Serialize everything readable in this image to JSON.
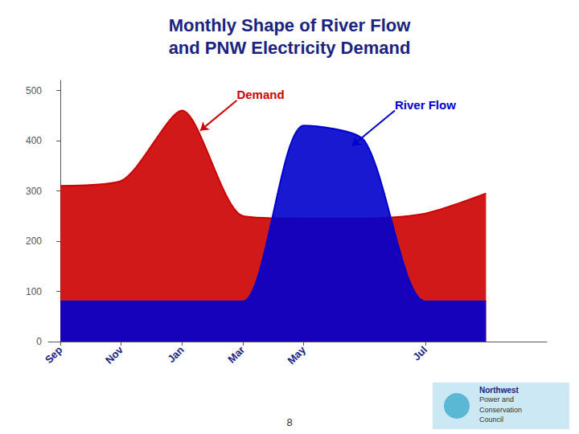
{
  "chart_data": {
    "type": "area",
    "title": "Monthly Shape of River Flow\nand PNW Electricity Demand",
    "title_color": "#1a237e",
    "x": [
      0,
      1,
      2,
      3,
      4,
      5,
      6,
      7
    ],
    "series": [
      {
        "name": "Demand",
        "color": "#cc0000",
        "values": [
          310,
          320,
          460,
          250,
          245,
          245,
          255,
          295
        ]
      },
      {
        "name": "River Flow",
        "color": "#0000cc",
        "values": [
          80,
          80,
          80,
          80,
          430,
          400,
          80,
          80
        ]
      }
    ],
    "xlim": [
      -0.2,
      8
    ],
    "xticks": [
      {
        "value": 0,
        "label": "Sep"
      },
      {
        "value": 1,
        "label": "Nov"
      },
      {
        "value": 2,
        "label": "Jan"
      },
      {
        "value": 3,
        "label": "Mar"
      },
      {
        "value": 4,
        "label": "May"
      },
      {
        "value": 6,
        "label": "Jul"
      }
    ],
    "ylim": [
      0,
      520
    ],
    "yticks": [
      0,
      100,
      200,
      300,
      400,
      500
    ],
    "grid": false,
    "annotations": [
      {
        "text": "Demand",
        "color": "#cc0000",
        "xy": [
          2.3,
          420
        ],
        "xytext": [
          2.9,
          480
        ]
      },
      {
        "text": "River Flow",
        "color": "#0000cc",
        "xy": [
          4.8,
          390
        ],
        "xytext": [
          5.5,
          460
        ]
      }
    ],
    "slide_number": "8",
    "logo_text": [
      "Northwest",
      "Power and",
      "Conservation",
      "Council"
    ]
  }
}
